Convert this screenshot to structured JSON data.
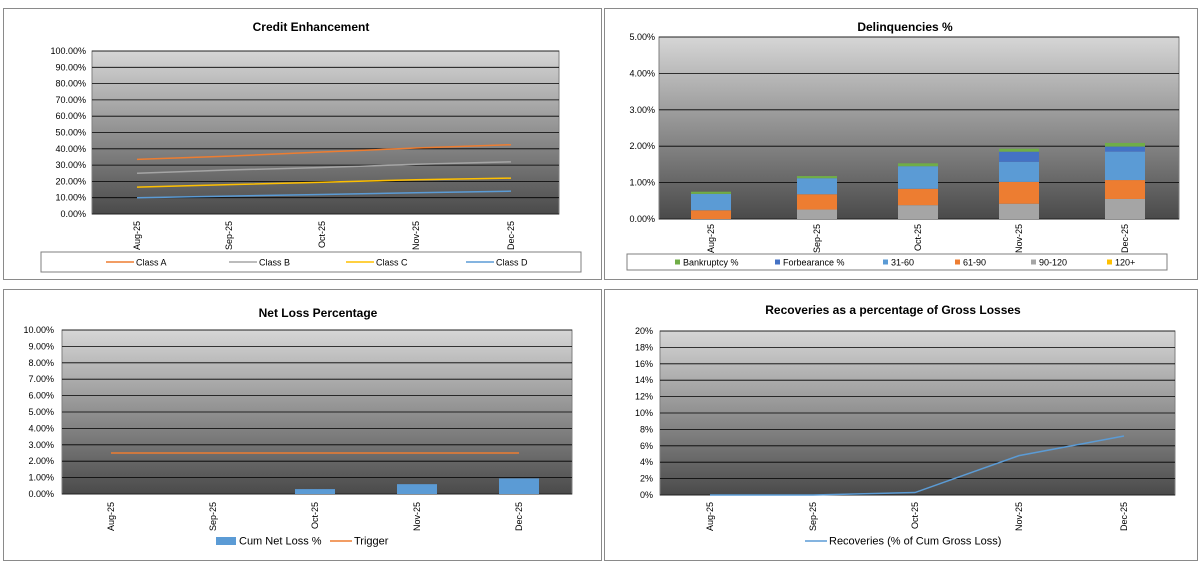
{
  "charts": [
    {
      "type": "line",
      "title": "Credit Enhancement",
      "categories": [
        "Aug-25",
        "Sep-25",
        "Oct-25",
        "Nov-25",
        "Dec-25"
      ],
      "yticks": [
        "0.00%",
        "10.00%",
        "20.00%",
        "30.00%",
        "40.00%",
        "50.00%",
        "60.00%",
        "70.00%",
        "80.00%",
        "90.00%",
        "100.00%"
      ],
      "ylim": [
        0,
        100
      ],
      "series": [
        {
          "name": "Class A",
          "color": "#ED7D31",
          "values": [
            33.5,
            35.5,
            38,
            40.5,
            42.5
          ]
        },
        {
          "name": "Class B",
          "color": "#A5A5A5",
          "values": [
            25,
            27,
            28.5,
            30.5,
            32
          ]
        },
        {
          "name": "Class C",
          "color": "#FFC000",
          "values": [
            16.5,
            18,
            19.5,
            21,
            22
          ]
        },
        {
          "name": "Class D",
          "color": "#5B9BD5",
          "values": [
            10,
            11,
            12,
            13,
            14
          ]
        }
      ]
    },
    {
      "type": "bar",
      "stacked": true,
      "title": "Delinquencies %",
      "categories": [
        "Aug-25",
        "Sep-25",
        "Oct-25",
        "Nov-25",
        "Dec-25"
      ],
      "yticks": [
        "0.00%",
        "1.00%",
        "2.00%",
        "3.00%",
        "4.00%",
        "5.00%"
      ],
      "ylim": [
        0,
        5
      ],
      "series": [
        {
          "name": "90-120",
          "color": "#A5A5A5",
          "values": [
            0,
            0.26,
            0.38,
            0.42,
            0.55
          ]
        },
        {
          "name": "61-90",
          "color": "#ED7D31",
          "values": [
            0.24,
            0.42,
            0.45,
            0.6,
            0.52
          ]
        },
        {
          "name": "31-60",
          "color": "#5B9BD5",
          "values": [
            0.45,
            0.44,
            0.62,
            0.55,
            0.78
          ]
        },
        {
          "name": "Forbearance %",
          "color": "#4472C4",
          "values": [
            0,
            0,
            0,
            0.28,
            0.14
          ]
        },
        {
          "name": "Bankruptcy %",
          "color": "#70AD47",
          "values": [
            0.06,
            0.06,
            0.08,
            0.08,
            0.1
          ]
        },
        {
          "name": "120+",
          "color": "#FFC000",
          "values": [
            0,
            0,
            0,
            0,
            0
          ]
        }
      ],
      "legend_order": [
        "Bankruptcy %",
        "Forbearance %",
        "31-60",
        "61-90",
        "90-120",
        "120+"
      ]
    },
    {
      "type": "bar+line",
      "title": "Net Loss Percentage",
      "categories": [
        "Aug-25",
        "Sep-25",
        "Oct-25",
        "Nov-25",
        "Dec-25"
      ],
      "yticks": [
        "0.00%",
        "1.00%",
        "2.00%",
        "3.00%",
        "4.00%",
        "5.00%",
        "6.00%",
        "7.00%",
        "8.00%",
        "9.00%",
        "10.00%"
      ],
      "ylim": [
        0,
        10
      ],
      "series": [
        {
          "name": "Cum Net Loss %",
          "kind": "bar",
          "color": "#5B9BD5",
          "values": [
            0,
            0,
            0.3,
            0.6,
            0.95
          ]
        },
        {
          "name": "Trigger",
          "kind": "line",
          "color": "#ED7D31",
          "values": [
            2.5,
            2.5,
            2.5,
            2.5,
            2.5
          ]
        }
      ]
    },
    {
      "type": "line",
      "title": "Recoveries as a percentage of Gross Losses",
      "categories": [
        "Aug-25",
        "Sep-25",
        "Oct-25",
        "Nov-25",
        "Dec-25"
      ],
      "yticks": [
        "0%",
        "2%",
        "4%",
        "6%",
        "8%",
        "10%",
        "12%",
        "14%",
        "16%",
        "18%",
        "20%"
      ],
      "ylim": [
        0,
        20
      ],
      "series": [
        {
          "name": "Recoveries (% of Cum Gross Loss)",
          "color": "#5B9BD5",
          "values": [
            0,
            0,
            0.3,
            4.8,
            7.2
          ]
        }
      ]
    }
  ]
}
